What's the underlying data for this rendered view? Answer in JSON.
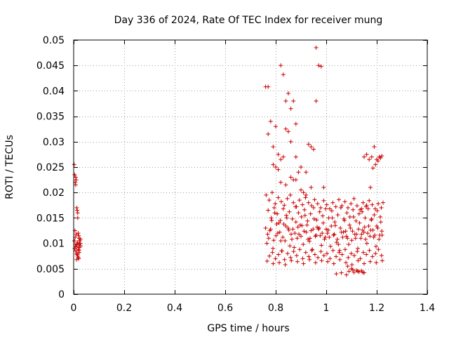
{
  "chart_data": {
    "type": "scatter",
    "title": "Day 336 of 2024, Rate Of TEC Index for receiver mung",
    "xlabel": "GPS time / hours",
    "ylabel": "ROTI / TECUs",
    "xlim": [
      0,
      1.4
    ],
    "ylim": [
      0,
      0.05
    ],
    "x_ticks": [
      0,
      0.2,
      0.4,
      0.6,
      0.8,
      1.0,
      1.2,
      1.4
    ],
    "x_tick_labels": [
      "0",
      "0.2",
      "0.4",
      "0.6",
      "0.8",
      "1",
      "1.2",
      "1.4"
    ],
    "y_ticks": [
      0,
      0.005,
      0.01,
      0.015,
      0.02,
      0.025,
      0.03,
      0.035,
      0.04,
      0.045,
      0.05
    ],
    "y_tick_labels": [
      "0",
      "0.005",
      "0.01",
      "0.015",
      "0.02",
      "0.025",
      "0.03",
      "0.035",
      "0.04",
      "0.045",
      "0.05"
    ],
    "grid": true,
    "marker": "+",
    "marker_color": "#cc0000",
    "series": [
      {
        "name": "ROTI",
        "x": [
          0.002,
          0.004,
          0.006,
          0.008,
          0.01,
          0.012,
          0.014,
          0.016,
          0.018,
          0.02,
          0.022,
          0.024,
          0.026,
          0.028,
          0.004,
          0.008,
          0.012,
          0.016,
          0.02,
          0.024,
          0.003,
          0.007,
          0.011,
          0.015,
          0.019,
          0.023,
          0.027,
          0.006,
          0.014,
          0.022,
          0.01,
          0.018,
          0.012,
          0.02,
          0.008,
          0.016,
          0.005,
          0.021,
          0.013,
          0.76,
          0.77,
          0.78,
          0.8,
          0.82,
          0.83,
          0.85,
          0.87,
          0.77,
          0.79,
          0.81,
          0.83,
          0.84,
          0.86,
          0.88,
          0.79,
          0.8,
          0.81,
          0.82,
          0.84,
          0.85,
          0.86,
          0.88,
          0.9,
          0.92,
          0.94,
          0.96,
          0.98,
          0.82,
          0.84,
          0.86,
          0.88,
          0.9,
          0.92,
          0.94,
          0.96,
          0.97,
          0.99,
          0.87,
          0.89,
          0.91,
          0.93,
          0.95,
          0.76,
          0.772,
          0.784,
          0.796,
          0.808,
          0.82,
          0.832,
          0.844,
          0.856,
          0.868,
          0.88,
          0.892,
          0.904,
          0.916,
          0.928,
          0.94,
          0.952,
          0.964,
          0.976,
          0.988,
          1.0,
          1.012,
          1.024,
          1.036,
          1.048,
          1.06,
          1.072,
          1.084,
          1.096,
          1.108,
          1.12,
          1.132,
          1.144,
          1.156,
          1.168,
          1.18,
          1.192,
          1.204,
          1.216,
          1.22,
          0.765,
          0.777,
          0.789,
          0.801,
          0.813,
          0.825,
          0.837,
          0.849,
          0.861,
          0.873,
          0.885,
          0.897,
          0.909,
          0.921,
          0.933,
          0.945,
          0.957,
          0.969,
          0.981,
          0.993,
          1.005,
          1.017,
          1.029,
          1.041,
          1.053,
          1.065,
          1.077,
          1.089,
          1.101,
          1.113,
          1.125,
          1.137,
          1.149,
          1.161,
          1.173,
          1.185,
          1.197,
          1.209,
          1.221,
          0.77,
          0.782,
          0.794,
          0.806,
          0.818,
          0.83,
          0.842,
          0.854,
          0.866,
          0.878,
          0.89,
          0.902,
          0.914,
          0.926,
          0.938,
          0.95,
          0.962,
          0.974,
          0.986,
          0.998,
          1.01,
          1.022,
          1.034,
          1.046,
          1.058,
          1.07,
          1.082,
          1.094,
          1.106,
          1.118,
          1.13,
          1.142,
          1.154,
          1.166,
          1.178,
          1.19,
          1.202,
          1.214,
          0.775,
          0.787,
          0.799,
          0.811,
          0.823,
          0.835,
          0.847,
          0.859,
          0.871,
          0.883,
          0.895,
          0.907,
          0.919,
          0.931,
          0.943,
          0.955,
          0.967,
          0.979,
          0.991,
          1.003,
          1.015,
          1.027,
          1.039,
          1.051,
          1.063,
          1.075,
          1.087,
          1.099,
          1.111,
          1.123,
          1.135,
          1.147,
          1.159,
          1.171,
          1.183,
          1.195,
          1.207,
          1.219,
          0.762,
          0.774,
          0.786,
          0.798,
          0.81,
          0.822,
          0.834,
          0.846,
          0.858,
          0.87,
          0.882,
          0.894,
          0.906,
          0.918,
          0.93,
          0.942,
          0.954,
          0.966,
          0.978,
          0.99,
          1.002,
          1.014,
          1.026,
          1.038,
          1.05,
          1.062,
          1.074,
          1.086,
          1.098,
          1.11,
          1.122,
          1.134,
          1.146,
          1.158,
          1.17,
          1.182,
          1.194,
          1.206,
          1.218,
          0.768,
          0.78,
          0.792,
          0.804,
          0.816,
          0.828,
          0.84,
          0.852,
          0.864,
          0.876,
          0.888,
          0.9,
          0.912,
          0.924,
          0.936,
          0.948,
          0.96,
          0.972,
          0.984,
          0.996,
          1.008,
          1.02,
          1.032,
          1.044,
          1.056,
          1.068,
          1.08,
          1.092,
          1.104,
          1.116,
          1.128,
          1.14,
          1.152,
          1.164,
          1.176,
          1.188,
          1.2,
          1.212,
          0.766,
          0.79,
          0.814,
          0.838,
          0.862,
          0.886,
          0.91,
          0.934,
          0.958,
          0.982,
          1.006,
          1.03,
          1.054,
          1.078,
          1.102,
          1.126,
          1.15,
          1.174,
          1.198,
          1.222,
          1.04,
          1.06,
          1.08,
          1.09,
          1.1,
          1.11,
          1.12,
          1.13,
          1.14,
          1.15,
          1.085,
          1.105,
          1.125,
          1.145,
          1.15,
          1.16,
          1.17,
          1.18,
          1.19,
          1.2,
          1.21,
          1.22,
          1.175,
          1.195,
          1.185,
          1.205,
          1.215,
          1.225,
          1.16,
          1.14
        ],
        "y": [
          0.0255,
          0.0235,
          0.022,
          0.023,
          0.0225,
          0.017,
          0.0165,
          0.015,
          0.012,
          0.0115,
          0.011,
          0.0105,
          0.01,
          0.0095,
          0.009,
          0.0085,
          0.008,
          0.0075,
          0.007,
          0.01,
          0.0105,
          0.0095,
          0.0098,
          0.0102,
          0.0088,
          0.0092,
          0.0108,
          0.0112,
          0.0078,
          0.0082,
          0.0118,
          0.0072,
          0.0068,
          0.0097,
          0.0215,
          0.016,
          0.0125,
          0.0086,
          0.0093,
          0.0408,
          0.0408,
          0.034,
          0.033,
          0.045,
          0.0432,
          0.0395,
          0.038,
          0.0315,
          0.029,
          0.0275,
          0.027,
          0.038,
          0.0365,
          0.0335,
          0.0255,
          0.025,
          0.0245,
          0.0265,
          0.0325,
          0.032,
          0.03,
          0.027,
          0.025,
          0.024,
          0.021,
          0.038,
          0.0448,
          0.022,
          0.0215,
          0.023,
          0.0225,
          0.0205,
          0.0195,
          0.029,
          0.0485,
          0.045,
          0.021,
          0.0225,
          0.024,
          0.02,
          0.0295,
          0.0285,
          0.013,
          0.011,
          0.0145,
          0.016,
          0.012,
          0.0105,
          0.0138,
          0.015,
          0.0095,
          0.0128,
          0.0142,
          0.0118,
          0.0135,
          0.0155,
          0.0108,
          0.0125,
          0.0148,
          0.0132,
          0.0115,
          0.014,
          0.0128,
          0.0112,
          0.015,
          0.0135,
          0.0098,
          0.0122,
          0.0145,
          0.011,
          0.013,
          0.0152,
          0.0118,
          0.014,
          0.0126,
          0.0108,
          0.0134,
          0.0148,
          0.0116,
          0.013,
          0.0142,
          0.0124,
          0.01,
          0.0125,
          0.009,
          0.0115,
          0.014,
          0.0085,
          0.0105,
          0.013,
          0.0118,
          0.0092,
          0.011,
          0.0136,
          0.0098,
          0.0122,
          0.0104,
          0.0088,
          0.0114,
          0.0128,
          0.0096,
          0.0108,
          0.012,
          0.0094,
          0.0116,
          0.0102,
          0.0086,
          0.0112,
          0.0124,
          0.0098,
          0.0106,
          0.0118,
          0.009,
          0.011,
          0.0122,
          0.01,
          0.0114,
          0.0126,
          0.0094,
          0.0108,
          0.0116,
          0.0165,
          0.015,
          0.017,
          0.0158,
          0.0145,
          0.0168,
          0.0155,
          0.0162,
          0.0148,
          0.0172,
          0.016,
          0.0152,
          0.0166,
          0.0144,
          0.0158,
          0.017,
          0.0146,
          0.0162,
          0.0154,
          0.0168,
          0.015,
          0.0164,
          0.0142,
          0.0156,
          0.017,
          0.0148,
          0.016,
          0.0152,
          0.0166,
          0.0144,
          0.0158,
          0.0162,
          0.015,
          0.0168,
          0.0146,
          0.0156,
          0.0164,
          0.0152,
          0.0075,
          0.0082,
          0.007,
          0.0078,
          0.0085,
          0.0068,
          0.008,
          0.0072,
          0.0084,
          0.0076,
          0.0088,
          0.007,
          0.0082,
          0.0074,
          0.0086,
          0.0078,
          0.0072,
          0.0084,
          0.0076,
          0.008,
          0.007,
          0.0086,
          0.0074,
          0.0082,
          0.0078,
          0.0088,
          0.0072,
          0.008,
          0.0076,
          0.0084,
          0.007,
          0.0082,
          0.0078,
          0.0086,
          0.0074,
          0.008,
          0.0088,
          0.0076,
          0.0195,
          0.0185,
          0.02,
          0.0178,
          0.019,
          0.0182,
          0.0175,
          0.0188,
          0.0195,
          0.018,
          0.0172,
          0.0185,
          0.0176,
          0.019,
          0.018,
          0.0174,
          0.0186,
          0.0178,
          0.017,
          0.0184,
          0.0176,
          0.0168,
          0.018,
          0.0172,
          0.0186,
          0.0174,
          0.0182,
          0.017,
          0.0178,
          0.0188,
          0.0174,
          0.0166,
          0.018,
          0.0172,
          0.0184,
          0.0176,
          0.0168,
          0.0178,
          0.017,
          0.0118,
          0.0128,
          0.0106,
          0.0138,
          0.0122,
          0.0112,
          0.0134,
          0.0126,
          0.0108,
          0.012,
          0.0132,
          0.0114,
          0.0124,
          0.0136,
          0.011,
          0.0128,
          0.0116,
          0.013,
          0.012,
          0.0112,
          0.0126,
          0.0134,
          0.0118,
          0.0108,
          0.013,
          0.0122,
          0.0114,
          0.0136,
          0.0124,
          0.011,
          0.0128,
          0.0118,
          0.0132,
          0.012,
          0.0126,
          0.0112,
          0.0134,
          0.0116,
          0.0065,
          0.006,
          0.0062,
          0.0058,
          0.0066,
          0.0064,
          0.006,
          0.0068,
          0.0062,
          0.0066,
          0.0064,
          0.006,
          0.0068,
          0.0062,
          0.0058,
          0.0066,
          0.006,
          0.0064,
          0.0062,
          0.0066,
          0.004,
          0.0042,
          0.0038,
          0.0045,
          0.005,
          0.0043,
          0.0047,
          0.0044,
          0.0046,
          0.0042,
          0.0055,
          0.0048,
          0.0045,
          0.0043,
          0.027,
          0.0275,
          0.0265,
          0.027,
          0.029,
          0.0265,
          0.027,
          0.0272,
          0.021,
          0.0255,
          0.0248,
          0.0262,
          0.0268,
          0.018,
          0.0175,
          0.0168
        ]
      }
    ]
  }
}
